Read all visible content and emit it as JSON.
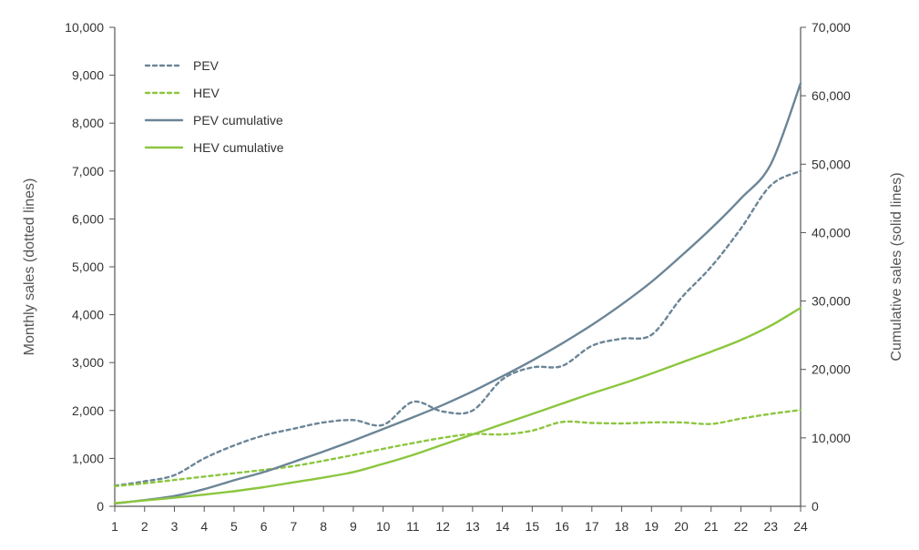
{
  "colors": {
    "pev": "#6b8596",
    "hev": "#8cc63f",
    "axis": "#555555"
  },
  "chart_data": {
    "type": "line",
    "x": [
      1,
      2,
      3,
      4,
      5,
      6,
      7,
      8,
      9,
      10,
      11,
      12,
      13,
      14,
      15,
      16,
      17,
      18,
      19,
      20,
      21,
      22,
      23,
      24
    ],
    "x_tick_labels": [
      "1",
      "2",
      "3",
      "4",
      "5",
      "6",
      "7",
      "8",
      "9",
      "10",
      "11",
      "12",
      "13",
      "14",
      "15",
      "16",
      "17",
      "18",
      "19",
      "20",
      "21",
      "22",
      "23",
      "24"
    ],
    "xlim": [
      1,
      24
    ],
    "ylabel_left": "Monthly sales (dotted lines)",
    "ylabel_right": "Cumulative sales (solid lines)",
    "ylim_left": [
      0,
      10000
    ],
    "ylim_right": [
      0,
      70000
    ],
    "left_tick_labels": [
      "0",
      "1,000",
      "2,000",
      "3,000",
      "4,000",
      "5,000",
      "6,000",
      "7,000",
      "8,000",
      "9,000",
      "10,000"
    ],
    "right_tick_labels": [
      "0",
      "10,000",
      "20,000",
      "30,000",
      "40,000",
      "50,000",
      "60,000",
      "70,000"
    ],
    "grid": false,
    "legend_position": "top-left",
    "series": [
      {
        "name": "PEV",
        "axis": "left",
        "style": "dotted",
        "color": "#6b8596",
        "values": [
          430,
          520,
          650,
          1000,
          1270,
          1480,
          1620,
          1750,
          1800,
          1700,
          2180,
          1980,
          2000,
          2650,
          2900,
          2930,
          3350,
          3500,
          3580,
          4350,
          5000,
          5800,
          6700,
          7000
        ]
      },
      {
        "name": "HEV",
        "axis": "left",
        "style": "dotted",
        "color": "#8cc63f",
        "values": [
          420,
          480,
          550,
          620,
          690,
          760,
          840,
          950,
          1070,
          1200,
          1320,
          1430,
          1510,
          1500,
          1580,
          1760,
          1740,
          1730,
          1750,
          1750,
          1720,
          1830,
          1930,
          2010
        ]
      },
      {
        "name": "PEV cumulative",
        "axis": "right",
        "style": "solid",
        "color": "#6b8596",
        "values": [
          400,
          900,
          1500,
          2500,
          3800,
          5000,
          6500,
          8000,
          9600,
          11300,
          13000,
          14800,
          16800,
          19000,
          21300,
          23800,
          26500,
          29500,
          32800,
          36600,
          40600,
          45000,
          50000,
          61800
        ]
      },
      {
        "name": "HEV cumulative",
        "axis": "right",
        "style": "solid",
        "color": "#8cc63f",
        "values": [
          450,
          850,
          1250,
          1700,
          2200,
          2800,
          3500,
          4200,
          5000,
          6200,
          7500,
          9000,
          10500,
          12000,
          13500,
          15000,
          16500,
          17900,
          19400,
          21000,
          22600,
          24300,
          26400,
          29000
        ]
      }
    ]
  }
}
